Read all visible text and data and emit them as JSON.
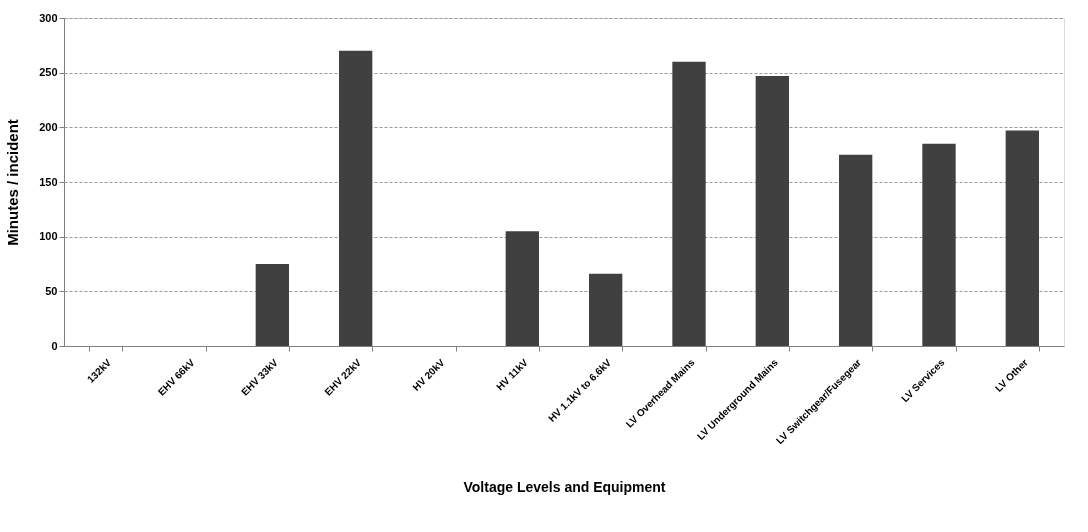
{
  "chart_data": {
    "type": "bar",
    "xlabel": "Voltage Levels and Equipment",
    "ylabel": "Minutes / incident",
    "categories": [
      "132kV",
      "EHV 66kV",
      "EHV 33kV",
      "EHV 22kV",
      "HV 20kV",
      "HV 11kV",
      "HV 1.1kV to 6.6kV",
      "LV Overhead Mains",
      "LV Underground Mains",
      "LV Switchgear/Fusegear",
      "LV Services",
      "LV Other"
    ],
    "values": [
      0,
      0,
      75,
      270,
      0,
      105,
      66,
      260,
      247,
      175,
      185,
      197
    ],
    "color": "#404040",
    "ylim": [
      0,
      300
    ],
    "yticks": [
      0,
      50,
      100,
      150,
      200,
      250,
      300
    ],
    "grid": "y"
  }
}
